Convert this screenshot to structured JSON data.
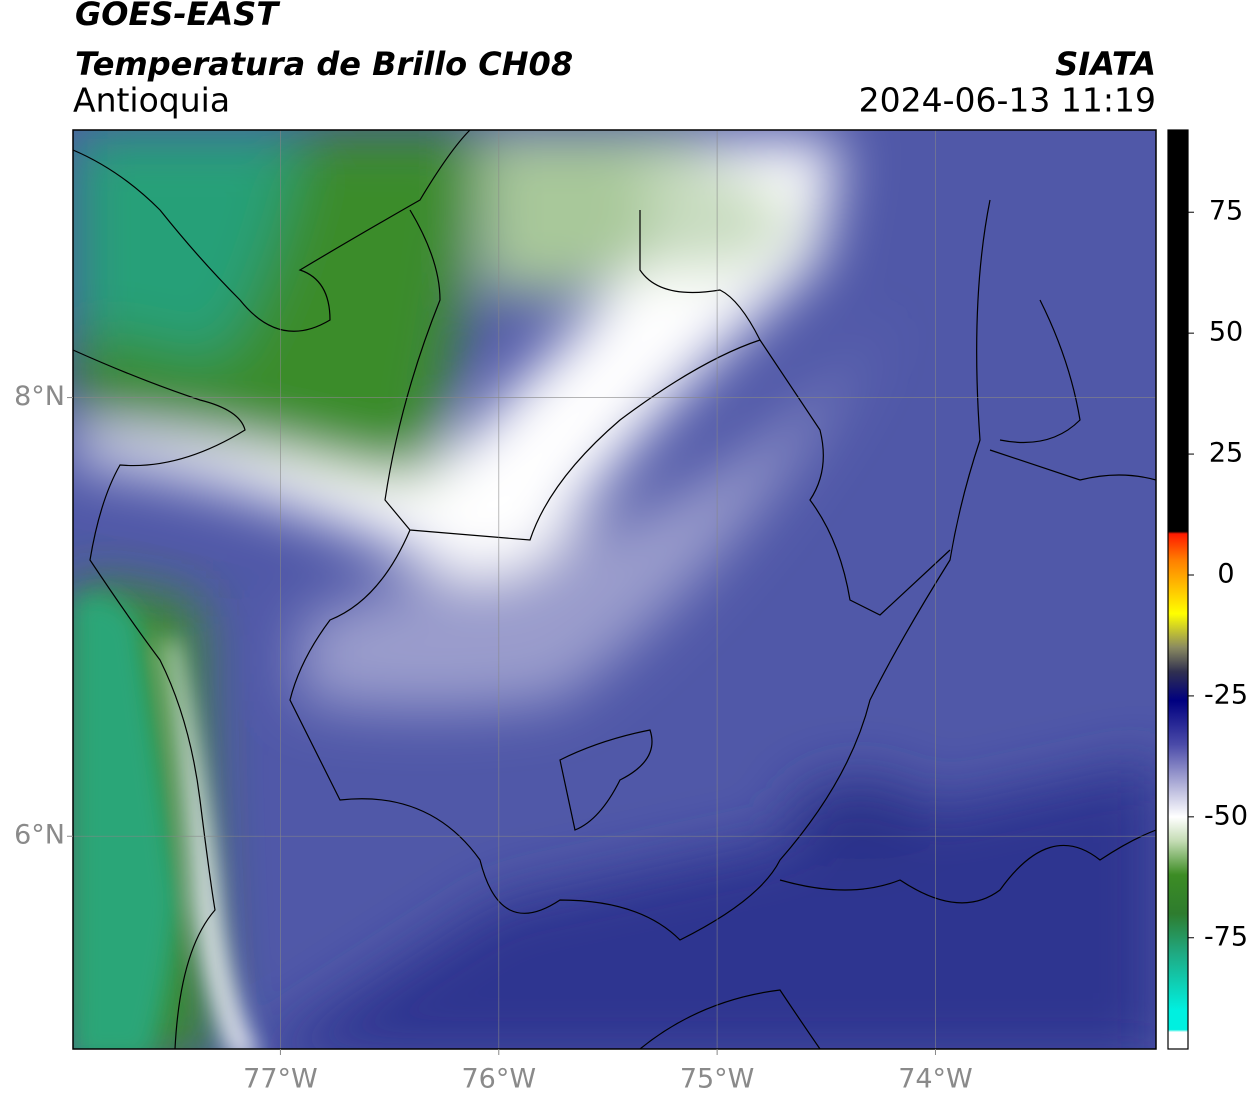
{
  "header": {
    "title": "GOES-EAST",
    "subtitle": "Temperatura de Brillo CH08",
    "region": "Antioquia",
    "agency": "SIATA",
    "datetime": "2024-06-13 11:19"
  },
  "map": {
    "xlim": [
      -77.95,
      -72.99
    ],
    "ylim": [
      5.03,
      9.22
    ],
    "xticks": [
      {
        "value": -77,
        "label": "77°W"
      },
      {
        "value": -76,
        "label": "76°W"
      },
      {
        "value": -75,
        "label": "75°W"
      },
      {
        "value": -74,
        "label": "74°W"
      }
    ],
    "yticks": [
      {
        "value": 6,
        "label": "6°N"
      },
      {
        "value": 8,
        "label": "8°N"
      }
    ],
    "grid": true
  },
  "colorbar": {
    "clim": [
      -98,
      92
    ],
    "ticks": [
      75,
      50,
      25,
      0,
      -25,
      -50,
      -75
    ],
    "stops": [
      [
        92,
        "#000000"
      ],
      [
        9,
        "#000000"
      ],
      [
        8.5,
        "#ff1a00"
      ],
      [
        3,
        "#ff8000"
      ],
      [
        -8,
        "#ffff00"
      ],
      [
        -15,
        "#8a8a60"
      ],
      [
        -20,
        "#303050"
      ],
      [
        -26,
        "#000080"
      ],
      [
        -35,
        "#4a4aa8"
      ],
      [
        -44,
        "#b8b8dc"
      ],
      [
        -50,
        "#ffffff"
      ],
      [
        -55,
        "#c4dcb4"
      ],
      [
        -62,
        "#3c8c24"
      ],
      [
        -70,
        "#2e7c2e"
      ],
      [
        -78,
        "#20a880"
      ],
      [
        -90,
        "#00f0e0"
      ],
      [
        -94,
        "#00f0e0"
      ],
      [
        -94.5,
        "#ffffff"
      ],
      [
        -98,
        "#ffffff"
      ]
    ]
  }
}
